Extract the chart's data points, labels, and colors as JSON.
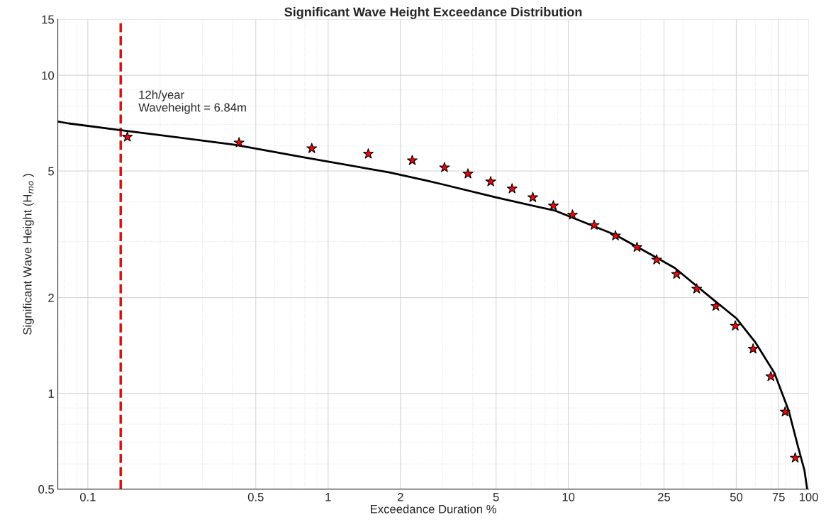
{
  "chart_data": {
    "type": "scatter",
    "title": "Significant Wave Height Exceedance Distribution",
    "xlabel": "Exceedance Duration %",
    "ylabel": "Significant Wave Height (H$_{mo}$ )",
    "log": "xy",
    "xlim": [
      0.075,
      100
    ],
    "ylim": [
      0.5,
      15
    ],
    "xticks": [
      0.1,
      0.5,
      1,
      2,
      5,
      10,
      25,
      50,
      75,
      100
    ],
    "yticks": [
      0.5,
      1,
      2,
      5,
      10,
      15
    ],
    "grid": true,
    "legend": false,
    "series": [
      {
        "color": "#ff0000",
        "marker": "star",
        "x": [
          0.146,
          0.426,
          0.855,
          1.47,
          2.24,
          3.05,
          3.82,
          4.75,
          5.83,
          7.11,
          8.66,
          10.4,
          12.8,
          15.7,
          19.3,
          23.3,
          28.2,
          34.2,
          41.1,
          49.5,
          58.7,
          69.6,
          79.8,
          87.9
        ],
        "values": [
          6.4,
          6.14,
          5.89,
          5.66,
          5.4,
          5.13,
          4.9,
          4.63,
          4.4,
          4.13,
          3.89,
          3.64,
          3.38,
          3.13,
          2.88,
          2.63,
          2.37,
          2.13,
          1.88,
          1.63,
          1.38,
          1.13,
          0.875,
          0.627
        ]
      },
      {
        "type": "line",
        "color": "#000000",
        "marker": "none",
        "line_style": "solid",
        "x": [
          0.075,
          0.0832,
          0.134,
          0.409,
          0.809,
          1.8,
          2.53,
          3.0,
          5.01,
          8.84,
          15.7,
          22.1,
          27.7,
          40.8,
          50.1,
          59.9,
          72.0,
          82.7,
          90.3,
          96.0,
          98.6
        ],
        "values": [
          7.16,
          7.06,
          6.74,
          6.05,
          5.51,
          4.95,
          4.68,
          4.54,
          4.13,
          3.75,
          3.15,
          2.73,
          2.48,
          1.95,
          1.72,
          1.45,
          1.16,
          0.88,
          0.68,
          0.574,
          0.5
        ]
      }
    ],
    "ref_lines": [
      {
        "axis": "x",
        "value": 0.137,
        "color": "#ff0000",
        "line_style": "dashed"
      }
    ],
    "annotations": [
      {
        "text": "12h/year\nWaveheight = 6.84m",
        "x": 0.137,
        "y": 6.84
      }
    ]
  }
}
